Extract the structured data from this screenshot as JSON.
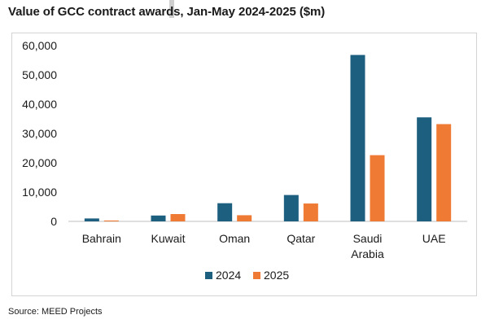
{
  "header": {
    "title": "Value of GCC contract awards, Jan-May 2024-2025 ($m)"
  },
  "footer": {
    "source": "Source: MEED Projects"
  },
  "colors": {
    "series_2024": "#1c5f7f",
    "series_2025": "#ef7a34",
    "axis": "#bfbfbf",
    "text": "#1a1a1a"
  },
  "chart_data": {
    "type": "bar",
    "title": "Value of GCC contract awards, Jan-May 2024-2025 ($m)",
    "xlabel": "",
    "ylabel": "",
    "categories": [
      "Bahrain",
      "Kuwait",
      "Oman",
      "Qatar",
      "Saudi Arabia",
      "UAE"
    ],
    "category_lines": [
      [
        "Bahrain"
      ],
      [
        "Kuwait"
      ],
      [
        "Oman"
      ],
      [
        "Qatar"
      ],
      [
        "Saudi",
        "Arabia"
      ],
      [
        "UAE"
      ]
    ],
    "series": [
      {
        "name": "2024",
        "values": [
          1000,
          2000,
          6200,
          9000,
          56800,
          35500
        ]
      },
      {
        "name": "2025",
        "values": [
          300,
          2500,
          2100,
          6100,
          22600,
          33200
        ]
      }
    ],
    "ylim": [
      0,
      60000
    ],
    "yticks": [
      0,
      10000,
      20000,
      30000,
      40000,
      50000,
      60000
    ],
    "ytick_labels": [
      "0",
      "10,000",
      "20,000",
      "30,000",
      "40,000",
      "50,000",
      "60,000"
    ],
    "grid": false,
    "legend_position": "bottom-center"
  }
}
